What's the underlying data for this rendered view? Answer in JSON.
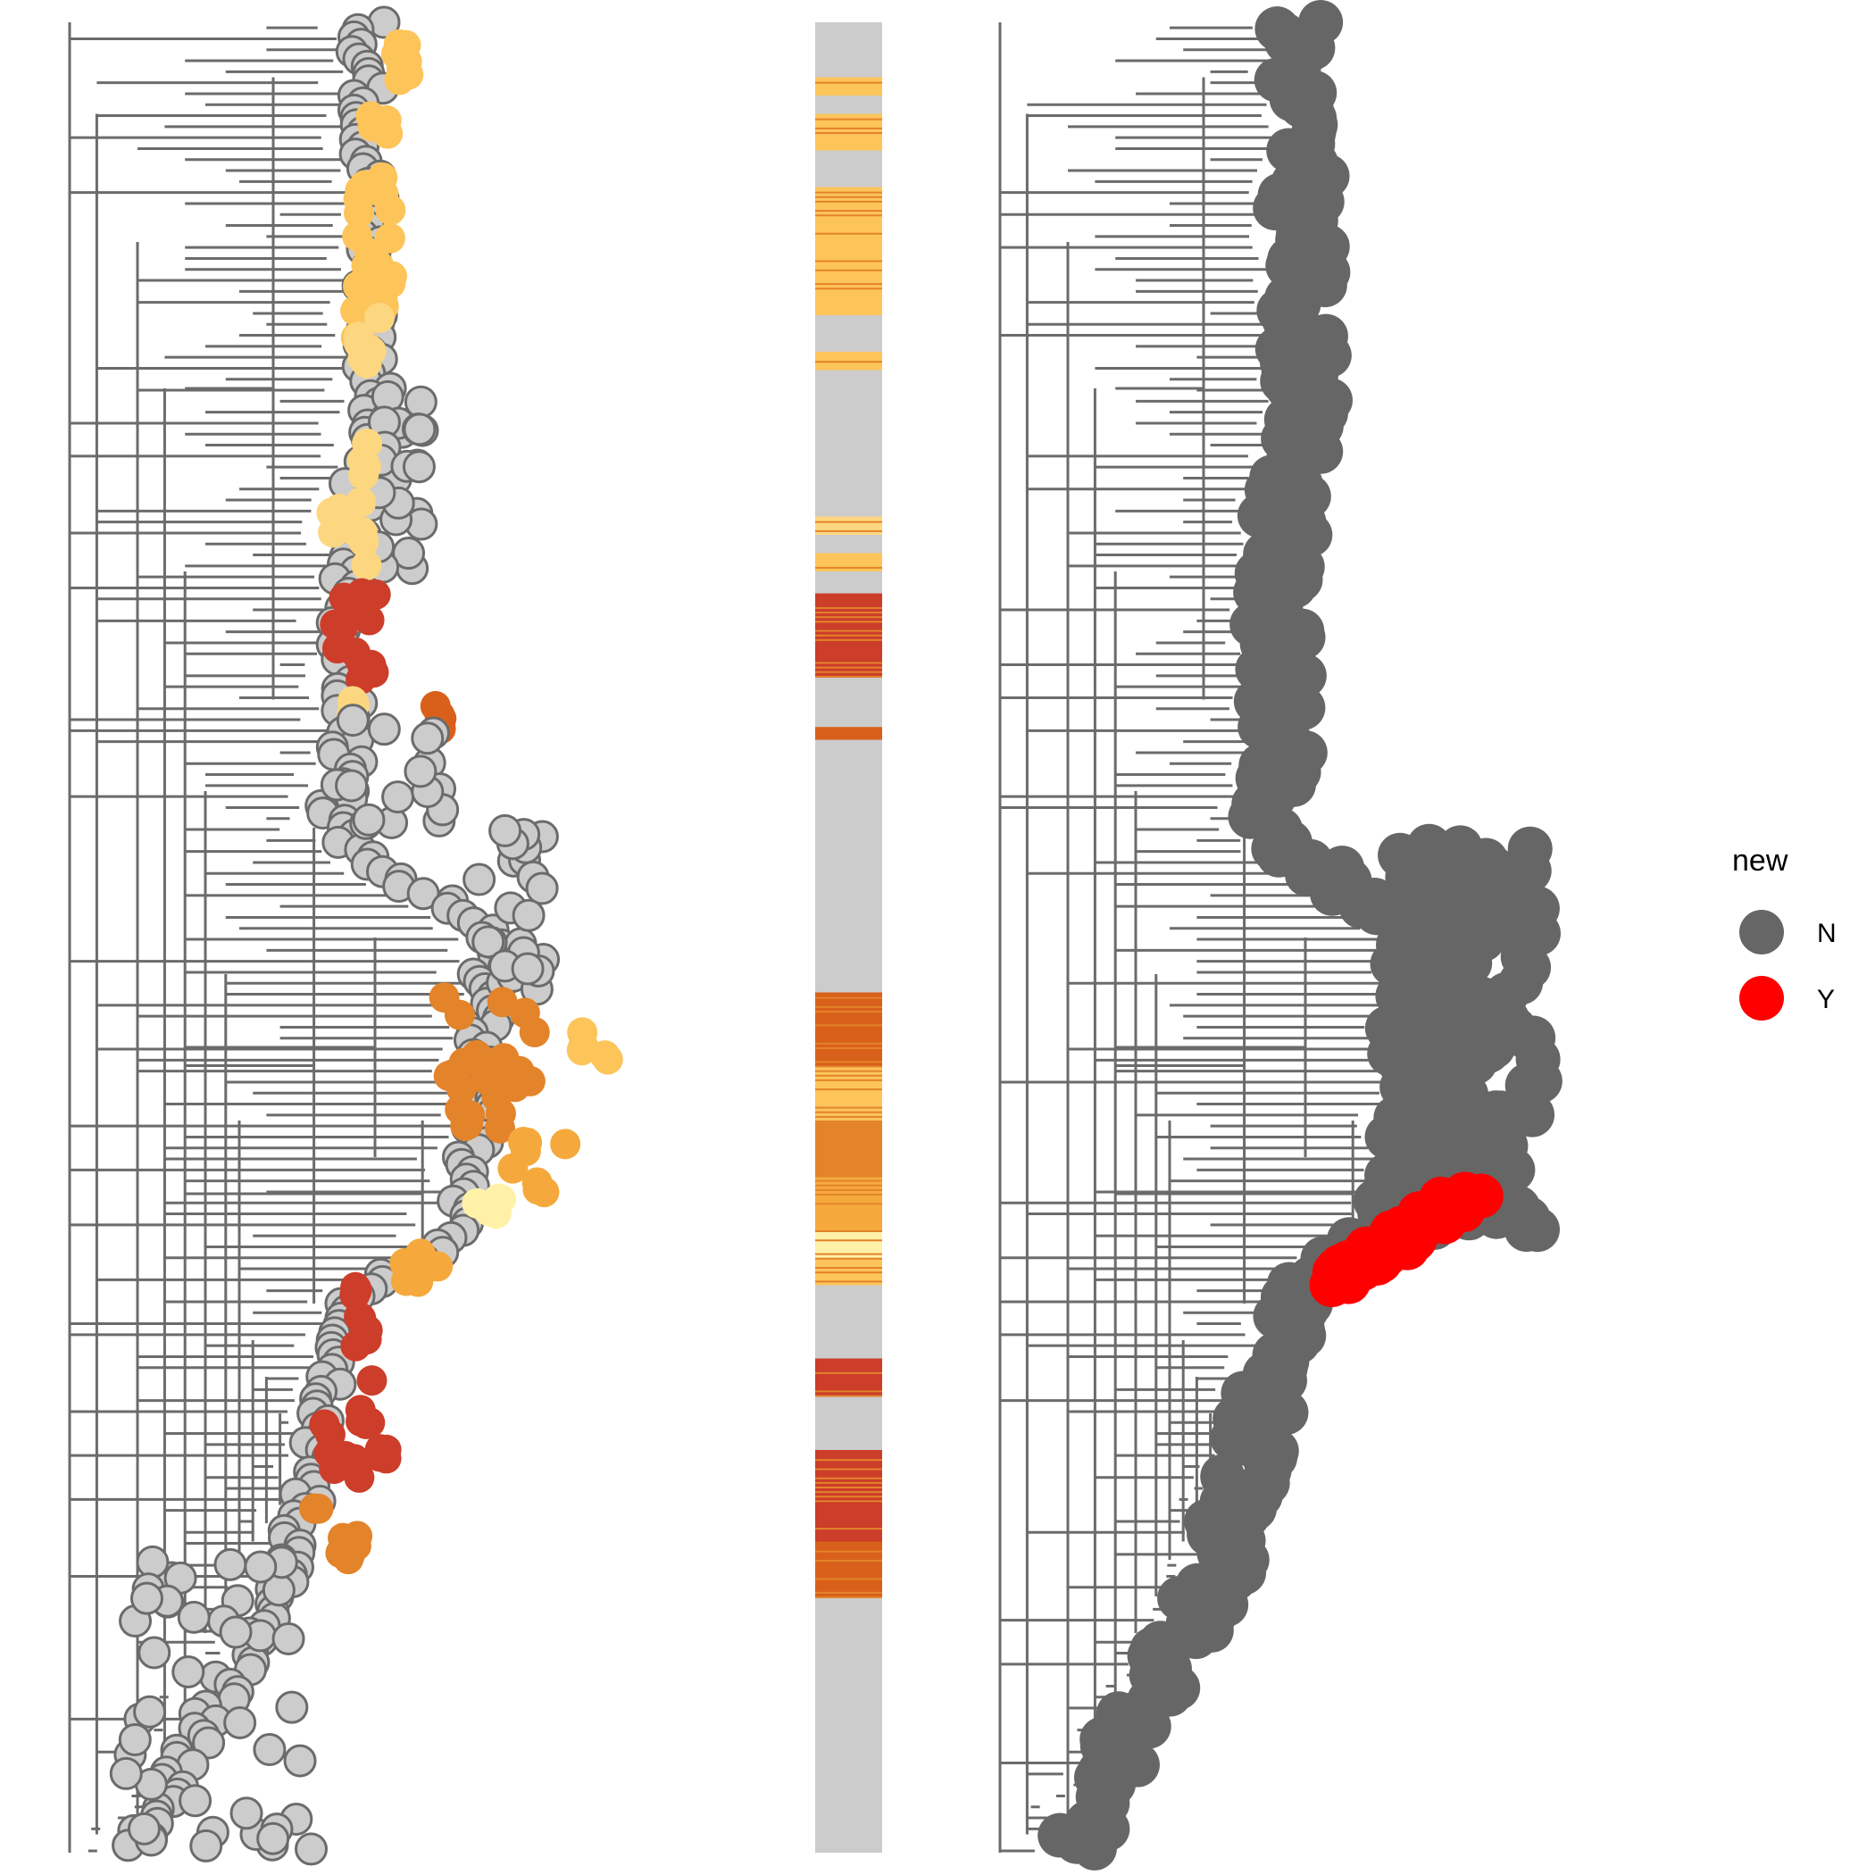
{
  "chart_data": [
    {
      "type": "scatter",
      "panel": "left-tree",
      "description_kind": "phylogenetic tree with colored tip points",
      "colors": {
        "branch": "#6b6b6b",
        "point_outline": "#6b6b6b",
        "categories": [
          "#cccccc",
          "#fdc45a",
          "#fdd77f",
          "#fff2a8",
          "#f5a93c",
          "#e3832a",
          "#d9601b",
          "#cc3d2a"
        ]
      },
      "clusters": [
        {
          "y": [
            0.01,
            0.04
          ],
          "x": [
            0.48,
            0.5
          ],
          "color": "#fdc45a"
        },
        {
          "y": [
            0.05,
            0.07
          ],
          "x": [
            0.44,
            0.47
          ],
          "color": "#fdc45a"
        },
        {
          "y": [
            0.08,
            0.18
          ],
          "x": [
            0.42,
            0.48
          ],
          "color": "#fdc45a"
        },
        {
          "y": [
            0.16,
            0.19
          ],
          "x": [
            0.42,
            0.47
          ],
          "color": "#fdd77f"
        },
        {
          "y": [
            0.2,
            0.3
          ],
          "x": [
            0.45,
            0.52
          ],
          "color": "#cccccc"
        },
        {
          "y": [
            0.23,
            0.25
          ],
          "x": [
            0.43,
            0.44
          ],
          "color": "#fdd77f"
        },
        {
          "y": [
            0.26,
            0.3
          ],
          "x": [
            0.38,
            0.44
          ],
          "color": "#fdd77f"
        },
        {
          "y": [
            0.31,
            0.36
          ],
          "x": [
            0.39,
            0.46
          ],
          "color": "#cc3d2a"
        },
        {
          "y": [
            0.37,
            0.38
          ],
          "x": [
            0.41,
            0.42
          ],
          "color": "#fdd77f"
        },
        {
          "y": [
            0.37,
            0.39
          ],
          "x": [
            0.53,
            0.55
          ],
          "color": "#d9601b"
        },
        {
          "y": [
            0.38,
            0.44
          ],
          "x": [
            0.39,
            0.55
          ],
          "color": "#cccccc"
        },
        {
          "y": [
            0.44,
            0.53
          ],
          "x": [
            0.6,
            0.7
          ],
          "color": "#cccccc"
        },
        {
          "y": [
            0.53,
            0.58
          ],
          "x": [
            0.55,
            0.71
          ],
          "color": "#e3832a"
        },
        {
          "y": [
            0.55,
            0.57
          ],
          "x": [
            0.74,
            0.82
          ],
          "color": "#fdc45a"
        },
        {
          "y": [
            0.56,
            0.61
          ],
          "x": [
            0.57,
            0.66
          ],
          "color": "#e3832a"
        },
        {
          "y": [
            0.61,
            0.64
          ],
          "x": [
            0.65,
            0.82
          ],
          "color": "#f5a93c"
        },
        {
          "y": [
            0.64,
            0.66
          ],
          "x": [
            0.6,
            0.64
          ],
          "color": "#fff2a8"
        },
        {
          "y": [
            0.66,
            0.69
          ],
          "x": [
            0.48,
            0.56
          ],
          "color": "#f5a93c"
        },
        {
          "y": [
            0.69,
            0.73
          ],
          "x": [
            0.42,
            0.44
          ],
          "color": "#cc3d2a"
        },
        {
          "y": [
            0.74,
            0.8
          ],
          "x": [
            0.37,
            0.47
          ],
          "color": "#cc3d2a"
        },
        {
          "y": [
            0.81,
            0.84
          ],
          "x": [
            0.34,
            0.46
          ],
          "color": "#e3832a"
        },
        {
          "y": [
            0.84,
            1.0
          ],
          "x": [
            0.08,
            0.36
          ],
          "color": "#cccccc"
        }
      ]
    },
    {
      "type": "heatmap",
      "panel": "middle-strip",
      "bands": [
        {
          "y": [
            0.0,
            0.31
          ],
          "color": "#cccccc"
        },
        {
          "y": [
            0.03,
            0.04
          ],
          "color": "#fdc45a"
        },
        {
          "y": [
            0.05,
            0.07
          ],
          "color": "#fdc45a"
        },
        {
          "y": [
            0.09,
            0.16
          ],
          "color": "#fdc45a"
        },
        {
          "y": [
            0.18,
            0.19
          ],
          "color": "#fdc45a"
        },
        {
          "y": [
            0.27,
            0.28
          ],
          "color": "#fdd77f"
        },
        {
          "y": [
            0.29,
            0.3
          ],
          "color": "#fdc45a"
        },
        {
          "y": [
            0.312,
            0.358
          ],
          "color": "#cc3d2a"
        },
        {
          "y": [
            0.385,
            0.392
          ],
          "color": "#d9601b"
        },
        {
          "y": [
            0.53,
            0.57
          ],
          "color": "#d9601b"
        },
        {
          "y": [
            0.57,
            0.6
          ],
          "color": "#fdc45a"
        },
        {
          "y": [
            0.6,
            0.63
          ],
          "color": "#e3832a"
        },
        {
          "y": [
            0.63,
            0.66
          ],
          "color": "#f5a93c"
        },
        {
          "y": [
            0.66,
            0.675
          ],
          "color": "#fff2a8"
        },
        {
          "y": [
            0.675,
            0.69
          ],
          "color": "#fdc45a"
        },
        {
          "y": [
            0.73,
            0.75
          ],
          "color": "#cc3d2a"
        },
        {
          "y": [
            0.78,
            0.83
          ],
          "color": "#cc3d2a"
        },
        {
          "y": [
            0.83,
            0.86
          ],
          "color": "#d9601b"
        }
      ]
    },
    {
      "type": "scatter",
      "panel": "right-tree",
      "legend": {
        "title": "new",
        "placement": "right",
        "items": [
          {
            "label": "N",
            "color": "#666666"
          },
          {
            "label": "Y",
            "color": "#ff0000"
          }
        ]
      },
      "clusters_Y": [
        {
          "y": [
            0.64,
            0.69
          ],
          "x": [
            0.49,
            0.69
          ]
        }
      ]
    }
  ]
}
